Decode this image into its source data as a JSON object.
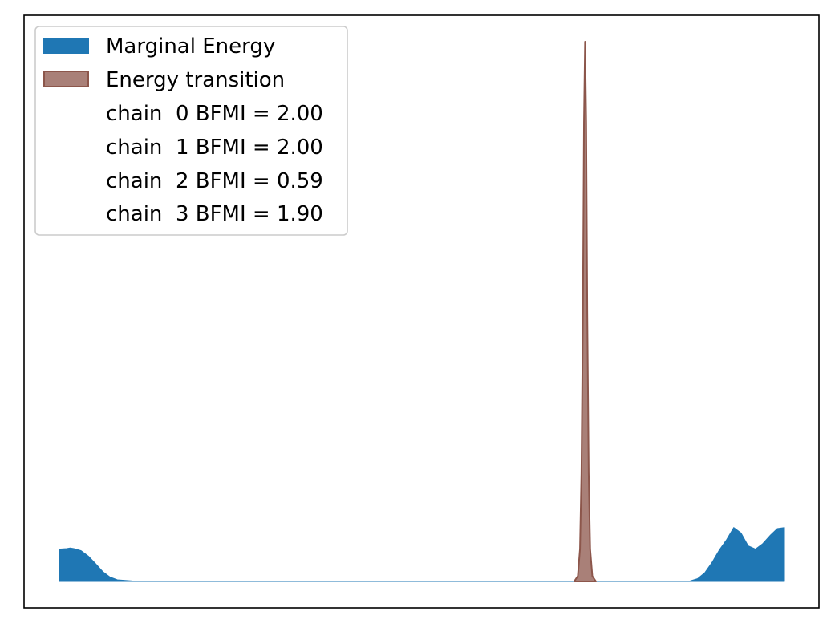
{
  "chart_data": {
    "type": "area",
    "title": "",
    "xlabel": "",
    "ylabel": "",
    "xticks_shown": false,
    "yticks_shown": false,
    "grid": false,
    "legend_placement": "upper-left",
    "x_range": [
      0,
      100
    ],
    "y_range": [
      0,
      1.0
    ],
    "series": [
      {
        "name": "Marginal Energy",
        "color": "#1f77b4",
        "opacity": 1.0,
        "x": [
          0,
          1,
          1.5,
          2,
          3,
          4,
          5,
          6,
          7,
          8,
          10,
          15,
          30,
          50,
          70,
          85,
          87,
          88,
          89,
          90,
          91,
          92,
          93,
          94,
          95,
          96,
          97,
          98,
          99,
          100
        ],
        "y": [
          0.06,
          0.061,
          0.062,
          0.061,
          0.057,
          0.047,
          0.033,
          0.018,
          0.008,
          0.003,
          0.001,
          0.0,
          0.0,
          0.0,
          0.0,
          0.0,
          0.001,
          0.005,
          0.016,
          0.035,
          0.058,
          0.077,
          0.1,
          0.09,
          0.066,
          0.06,
          0.07,
          0.085,
          0.098,
          0.1
        ]
      },
      {
        "name": "Energy transition",
        "color": "#8c564b",
        "opacity": 0.75,
        "x": [
          71,
          71.5,
          71.8,
          72,
          72.2,
          72.35,
          72.5,
          72.65,
          72.8,
          73,
          73.2,
          73.5,
          74
        ],
        "y": [
          0.0,
          0.01,
          0.06,
          0.2,
          0.5,
          0.85,
          1.0,
          0.85,
          0.5,
          0.2,
          0.06,
          0.01,
          0.0
        ]
      }
    ],
    "legend": [
      {
        "label": "Marginal Energy",
        "swatch": "blue"
      },
      {
        "label": "Energy transition",
        "swatch": "brown"
      },
      {
        "label": "chain  0 BFMI = 2.00",
        "swatch": "none"
      },
      {
        "label": "chain  1 BFMI = 2.00",
        "swatch": "none"
      },
      {
        "label": "chain  2 BFMI = 0.59",
        "swatch": "none"
      },
      {
        "label": "chain  3 BFMI = 1.90",
        "swatch": "none"
      }
    ]
  }
}
